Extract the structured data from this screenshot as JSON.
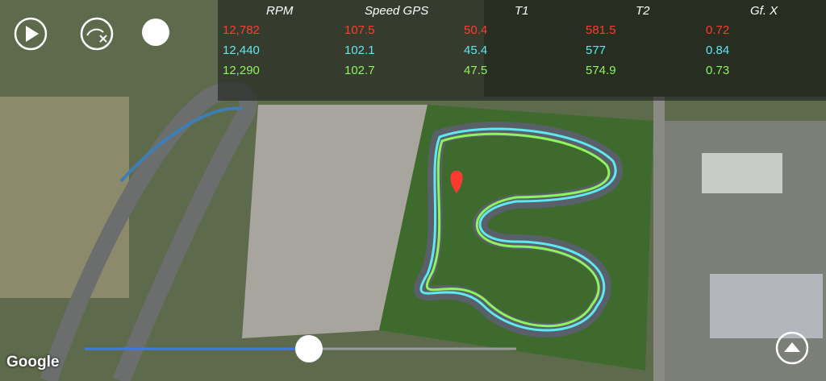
{
  "table": {
    "headers": [
      "RPM",
      "Speed GPS",
      "T1",
      "T2",
      "Gf. X"
    ],
    "rows": [
      [
        "12,782",
        "107.5",
        "50.4",
        "581.5",
        "0.72"
      ],
      [
        "12,440",
        "102.1",
        "45.4",
        "577",
        "0.84"
      ],
      [
        "12,290",
        "102.7",
        "47.5",
        "574.9",
        "0.73"
      ]
    ]
  },
  "map": {
    "attribution": "Google"
  }
}
